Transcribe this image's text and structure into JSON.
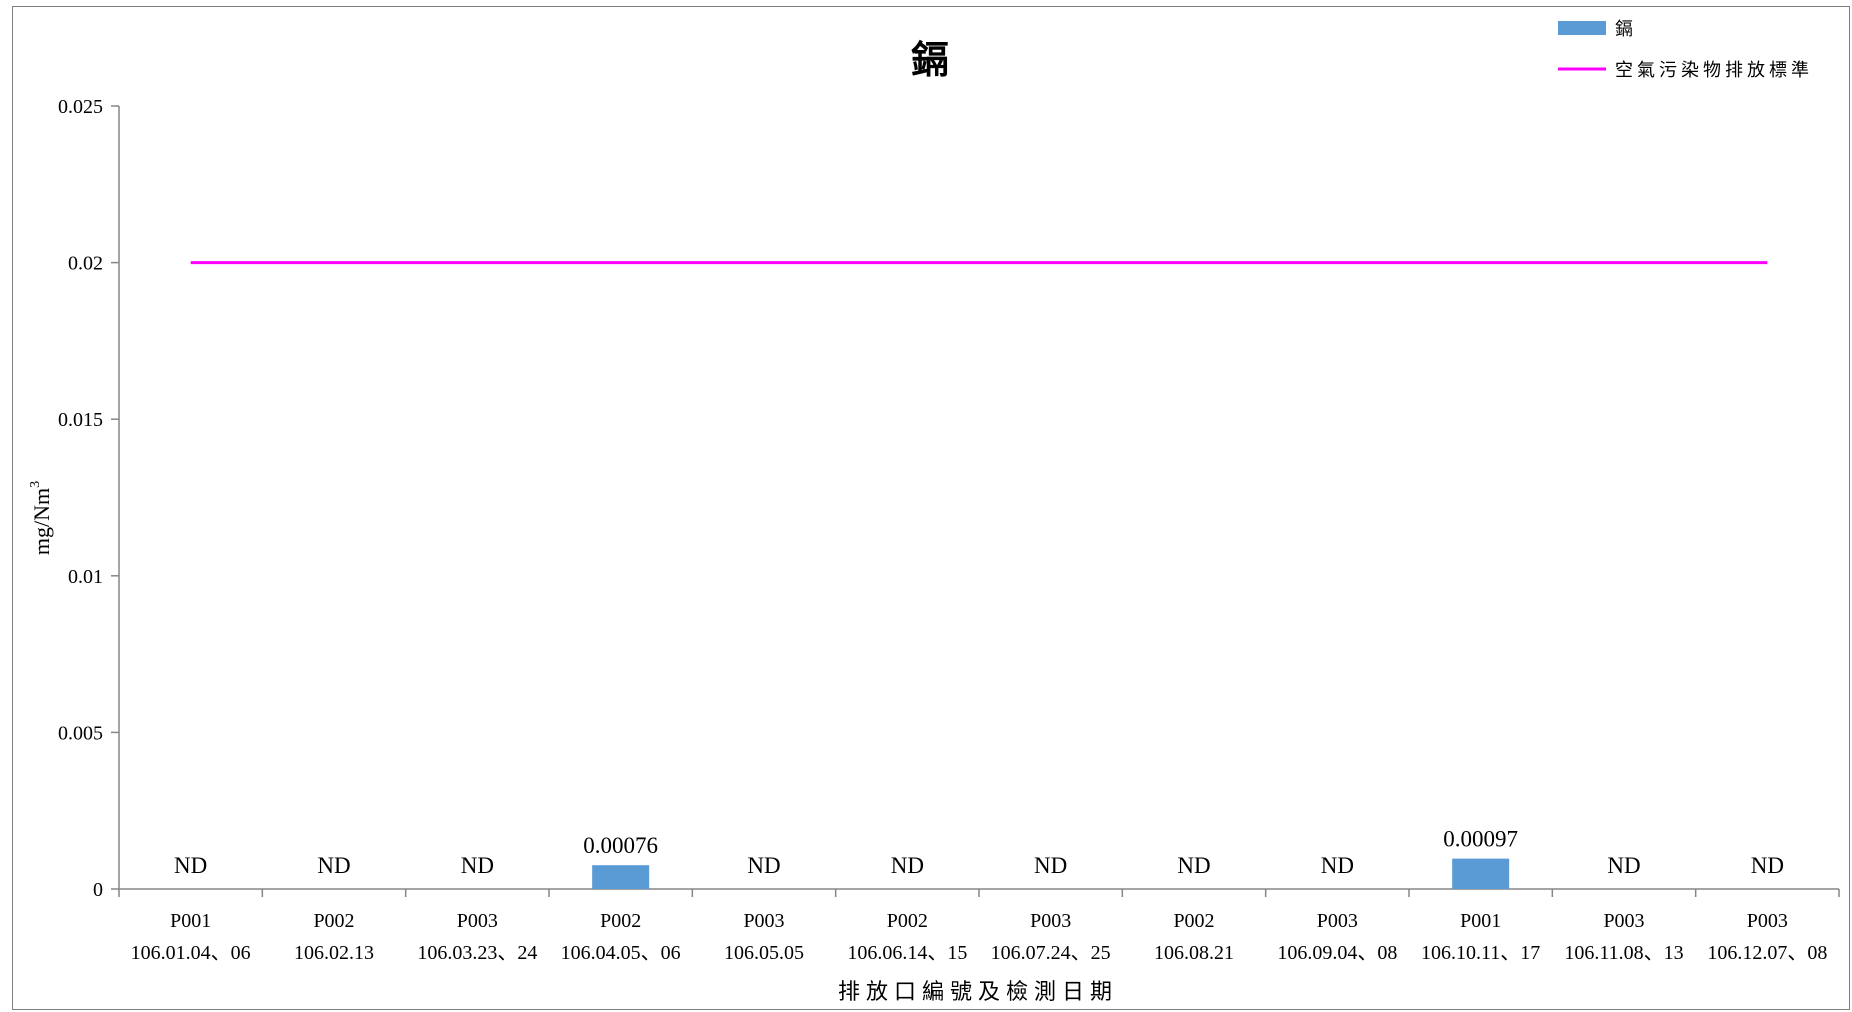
{
  "chart_data": {
    "type": "bar",
    "title": "鎘",
    "xlabel": "排放口編號及檢測日期",
    "ylabel": "mg/Nm",
    "ylabel_superscript": "3",
    "ylim": [
      0,
      0.025
    ],
    "yticks": [
      "0",
      "0.005",
      "0.01",
      "0.015",
      "0.02",
      "0.025"
    ],
    "ytick_values": [
      0,
      0.005,
      0.01,
      0.015,
      0.02,
      0.025
    ],
    "categories": [
      {
        "outlet": "P001",
        "date": "106.01.04、06"
      },
      {
        "outlet": "P002",
        "date": "106.02.13"
      },
      {
        "outlet": "P003",
        "date": "106.03.23、24"
      },
      {
        "outlet": "P002",
        "date": "106.04.05、06"
      },
      {
        "outlet": "P003",
        "date": "106.05.05"
      },
      {
        "outlet": "P002",
        "date": "106.06.14、15"
      },
      {
        "outlet": "P003",
        "date": "106.07.24、25"
      },
      {
        "outlet": "P002",
        "date": "106.08.21"
      },
      {
        "outlet": "P003",
        "date": "106.09.04、08"
      },
      {
        "outlet": "P001",
        "date": "106.10.11、17"
      },
      {
        "outlet": "P003",
        "date": "106.11.08、13"
      },
      {
        "outlet": "P003",
        "date": "106.12.07、08"
      }
    ],
    "series": [
      {
        "name": "鎘",
        "kind": "bar",
        "color": "#5b9bd5",
        "values": [
          0,
          0,
          0,
          0.00076,
          0,
          0,
          0,
          0,
          0,
          0.00097,
          0,
          0
        ],
        "labels": [
          "ND",
          "ND",
          "ND",
          "0.00076",
          "ND",
          "ND",
          "ND",
          "ND",
          "ND",
          "0.00097",
          "ND",
          "ND"
        ]
      },
      {
        "name": "空氣污染物排放標準",
        "kind": "line",
        "color": "#ff00ff",
        "values": [
          0.02,
          0.02,
          0.02,
          0.02,
          0.02,
          0.02,
          0.02,
          0.02,
          0.02,
          0.02,
          0.02,
          0.02
        ]
      }
    ],
    "legend_position": "top-right",
    "grid": false
  }
}
